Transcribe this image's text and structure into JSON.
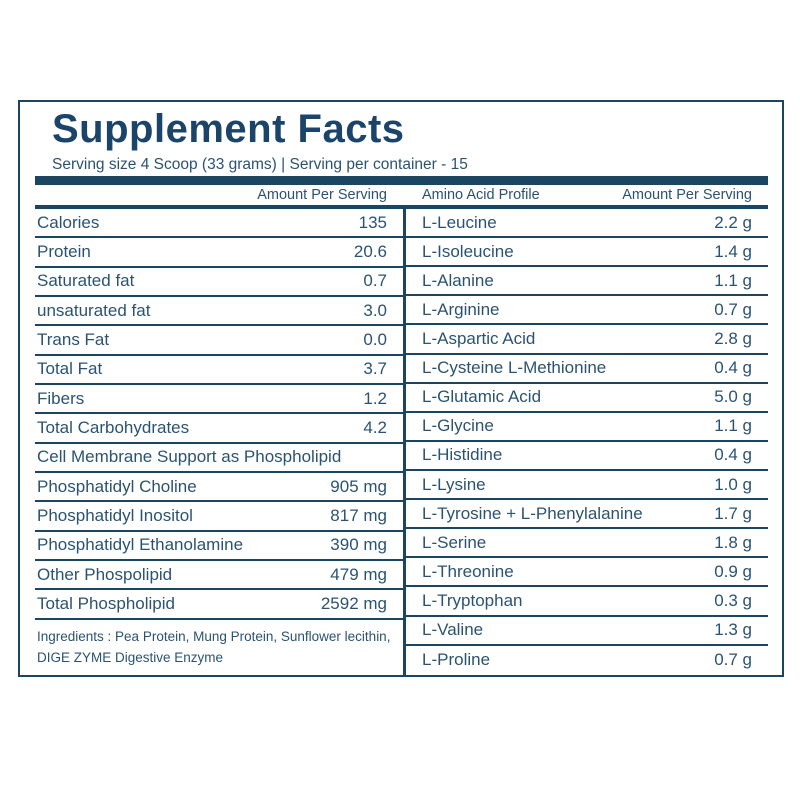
{
  "label": {
    "title": "Supplement Facts",
    "serving_info": "Serving size 4 Scoop (33 grams) | Serving per container - 15",
    "columns": {
      "left_amount_header": "Amount Per Serving",
      "amino_profile_header": "Amino Acid Profile",
      "right_amount_header": "Amount Per Serving"
    },
    "nutrition_rows": [
      {
        "name": "Calories",
        "value": "135"
      },
      {
        "name": "Protein",
        "value": "20.6"
      },
      {
        "name": "Saturated fat",
        "value": "0.7"
      },
      {
        "name": "unsaturated fat",
        "value": "3.0"
      },
      {
        "name": "Trans Fat",
        "value": "0.0"
      },
      {
        "name": "Total Fat",
        "value": "3.7"
      },
      {
        "name": "Fibers",
        "value": "1.2"
      },
      {
        "name": "Total Carbohydrates",
        "value": "4.2"
      },
      {
        "name": "Cell Membrane Support as Phospholipid",
        "value": ""
      },
      {
        "name": "Phosphatidyl Choline",
        "value": "905 mg"
      },
      {
        "name": "Phosphatidyl Inositol",
        "value": "817 mg"
      },
      {
        "name": "Phosphatidyl Ethanolamine",
        "value": "390 mg"
      },
      {
        "name": "Other Phospolipid",
        "value": "479 mg"
      },
      {
        "name": "Total Phospholipid",
        "value": "2592 mg"
      }
    ],
    "amino_rows": [
      {
        "name": "L-Leucine",
        "value": "2.2 g"
      },
      {
        "name": "L-Isoleucine",
        "value": "1.4 g"
      },
      {
        "name": "L-Alanine",
        "value": "1.1 g"
      },
      {
        "name": "L-Arginine",
        "value": "0.7 g"
      },
      {
        "name": "L-Aspartic Acid",
        "value": "2.8 g"
      },
      {
        "name": "L-Cysteine L-Methionine",
        "value": "0.4 g"
      },
      {
        "name": "L-Glutamic Acid",
        "value": "5.0 g"
      },
      {
        "name": "L-Glycine",
        "value": "1.1 g"
      },
      {
        "name": "L-Histidine",
        "value": "0.4 g"
      },
      {
        "name": "L-Lysine",
        "value": "1.0 g"
      },
      {
        "name": "L-Tyrosine + L-Phenylalanine",
        "value": "1.7 g"
      },
      {
        "name": "L-Serine",
        "value": "1.8 g"
      },
      {
        "name": "L-Threonine",
        "value": "0.9 g"
      },
      {
        "name": "L-Tryptophan",
        "value": "0.3 g"
      },
      {
        "name": "L-Valine",
        "value": "1.3 g"
      },
      {
        "name": "L-Proline",
        "value": "0.7 g"
      }
    ],
    "ingredients_lines": [
      "Ingredients : Pea Protein, Mung Protein, Sunflower lecithin,",
      "DIGE ZYME Digestive Enzyme"
    ]
  },
  "colors": {
    "frame": "#1B4560",
    "title": "#1A4469",
    "text": "#2B5370",
    "background": "#FFFFFF"
  }
}
